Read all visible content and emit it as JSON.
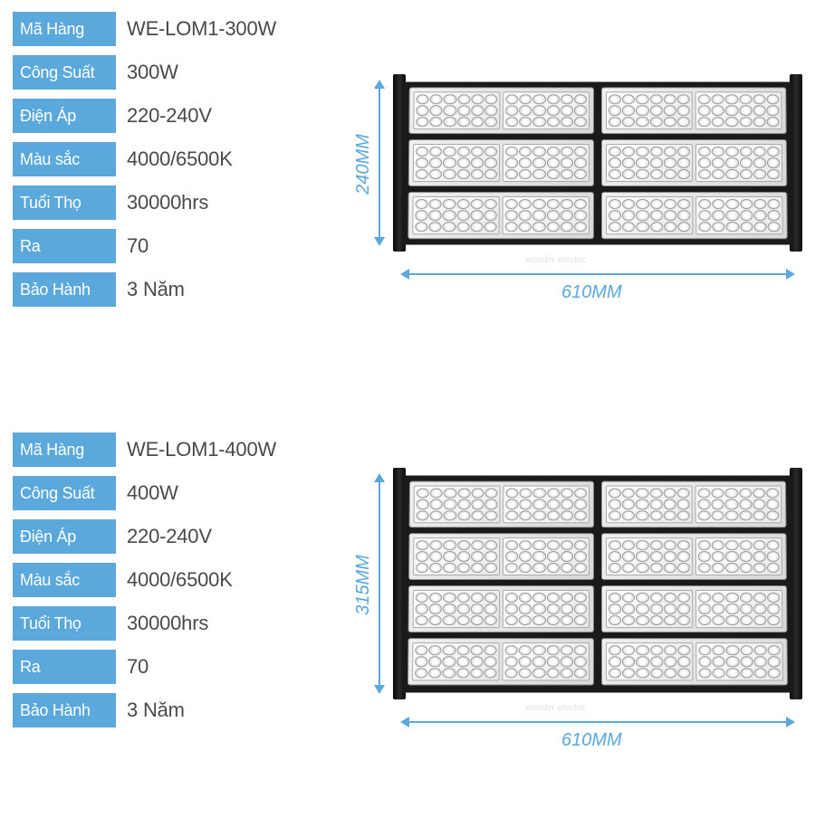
{
  "label_color": "#5aa8dc",
  "value_color": "#4a4a4a",
  "dim_color": "#5aa8dc",
  "products": [
    {
      "specs": [
        {
          "label": "Mã Hàng",
          "value": "WE-LOM1-300W"
        },
        {
          "label": "Công Suất",
          "value": "300W"
        },
        {
          "label": "Điện Áp",
          "value": "220-240V"
        },
        {
          "label": "Màu sắc",
          "value": "4000/6500K"
        },
        {
          "label": "Tuổi Thọ",
          "value": "30000hrs"
        },
        {
          "label": "Ra",
          "value": "70"
        },
        {
          "label": "Bảo Hành",
          "value": "3 Năm"
        }
      ],
      "height_label": "240MM",
      "width_label": "610MM",
      "module_rows": 3
    },
    {
      "specs": [
        {
          "label": "Mã Hàng",
          "value": "WE-LOM1-400W"
        },
        {
          "label": "Công Suất",
          "value": "400W"
        },
        {
          "label": "Điện Áp",
          "value": "220-240V"
        },
        {
          "label": "Màu sắc",
          "value": "4000/6500K"
        },
        {
          "label": "Tuổi Thọ",
          "value": "30000hrs"
        },
        {
          "label": "Ra",
          "value": "70"
        },
        {
          "label": "Bảo Hành",
          "value": "3 Năm"
        }
      ],
      "height_label": "315MM",
      "width_label": "610MM",
      "module_rows": 4
    }
  ],
  "watermark_text": "wonder electric"
}
